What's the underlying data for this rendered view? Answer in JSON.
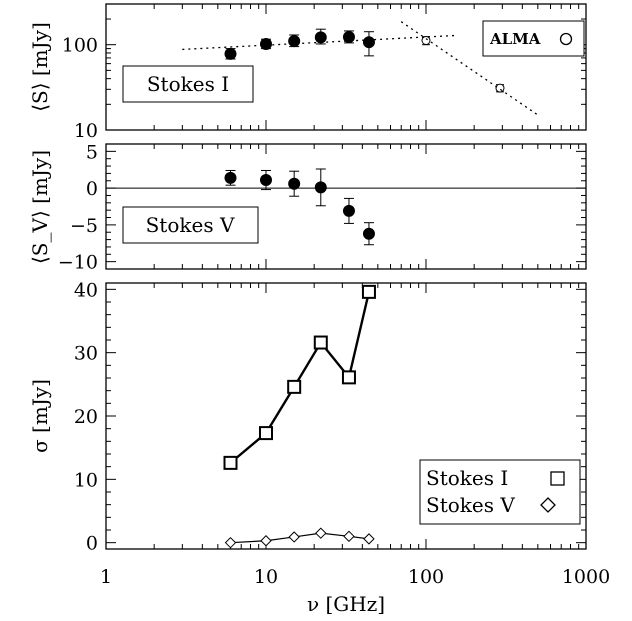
{
  "chart_data": [
    {
      "panel": "Stokes I",
      "type": "scatter",
      "xscale": "log",
      "yscale": "log",
      "xlim": [
        1,
        1000
      ],
      "ylim": [
        10,
        300
      ],
      "ylabel": "⟨S⟩ [mJy]",
      "yticks": [
        {
          "value": 10,
          "label": "10"
        },
        {
          "value": 100,
          "label": "100"
        }
      ],
      "label_box": "Stokes I",
      "legend": {
        "text": "ALMA",
        "marker": "○"
      },
      "series": [
        {
          "marker": "filled-circle",
          "x": [
            6,
            10,
            15,
            22,
            33,
            44
          ],
          "y": [
            78,
            102,
            110,
            122,
            123,
            107
          ],
          "yerr_low": [
            10,
            12,
            15,
            20,
            18,
            33
          ],
          "yerr_high": [
            12,
            14,
            20,
            30,
            22,
            35
          ]
        },
        {
          "marker": "open-circle",
          "x": [
            100,
            290
          ],
          "y": [
            112,
            31
          ],
          "yerr_low": [
            12,
            3
          ],
          "yerr_high": [
            12,
            3
          ]
        },
        {
          "style": "dotted-fit",
          "x": [
            3,
            150
          ],
          "y": [
            88,
            128
          ]
        },
        {
          "style": "dotted-fit",
          "x": [
            70,
            500
          ],
          "y": [
            186,
            15
          ]
        }
      ]
    },
    {
      "panel": "Stokes V",
      "type": "scatter",
      "xscale": "log",
      "xlim": [
        1,
        1000
      ],
      "ylim": [
        -11,
        6
      ],
      "ylabel": "⟨S_V⟩ [mJy]",
      "yticks": [
        {
          "value": 5,
          "label": "5"
        },
        {
          "value": 0,
          "label": "0"
        },
        {
          "value": -5,
          "label": "−5"
        },
        {
          "value": -10,
          "label": "−10"
        }
      ],
      "reference_line_y": 0,
      "label_box": "Stokes V",
      "series": [
        {
          "marker": "filled-circle",
          "x": [
            6,
            10,
            15,
            22,
            33,
            44
          ],
          "y": [
            1.4,
            1.1,
            0.6,
            0.1,
            -3.1,
            -6.2
          ],
          "yerr": [
            1.0,
            1.3,
            1.7,
            2.5,
            1.7,
            1.5
          ]
        }
      ]
    },
    {
      "panel": "sigma",
      "type": "line",
      "xscale": "log",
      "xlim": [
        1,
        1000
      ],
      "ylim": [
        -1,
        41
      ],
      "xlabel": "ν [GHz]",
      "ylabel": "σ [mJy]",
      "xticks": [
        {
          "value": 1,
          "label": "1"
        },
        {
          "value": 10,
          "label": "10"
        },
        {
          "value": 100,
          "label": "100"
        },
        {
          "value": 1000,
          "label": "1000"
        }
      ],
      "yticks": [
        {
          "value": 0,
          "label": "0"
        },
        {
          "value": 10,
          "label": "10"
        },
        {
          "value": 20,
          "label": "20"
        },
        {
          "value": 30,
          "label": "30"
        },
        {
          "value": 40,
          "label": "40"
        }
      ],
      "legend": {
        "placement": "bottom-right",
        "entries": [
          {
            "text": "Stokes I",
            "marker": "□"
          },
          {
            "text": "Stokes V",
            "marker": "◇"
          }
        ]
      },
      "series": [
        {
          "name": "Stokes I",
          "marker": "square",
          "x": [
            6,
            10,
            15,
            22,
            33,
            44
          ],
          "y": [
            12.6,
            17.3,
            24.6,
            31.6,
            26.1,
            39.6
          ]
        },
        {
          "name": "Stokes V",
          "marker": "diamond",
          "x": [
            6,
            10,
            15,
            22,
            33,
            44
          ],
          "y": [
            0.0,
            0.3,
            0.9,
            1.5,
            1.0,
            0.6
          ]
        }
      ]
    }
  ]
}
